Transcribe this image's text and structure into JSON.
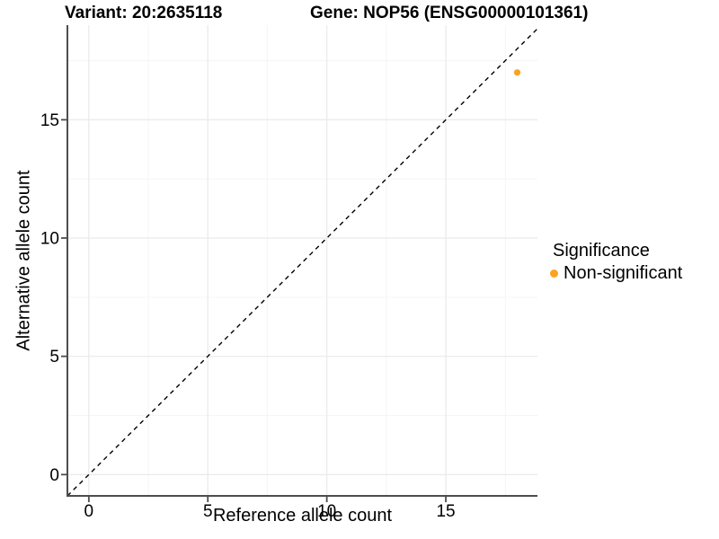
{
  "chart_data": {
    "type": "scatter",
    "title_variant": "Variant: 20:2635118",
    "title_gene": "Gene: NOP56 (ENSG00000101361)",
    "xlabel": "Reference allele count",
    "ylabel": "Alternative allele count",
    "xlim": [
      -0.9,
      18.85
    ],
    "ylim": [
      -0.9,
      19.0
    ],
    "x_ticks": [
      0,
      5,
      10,
      15
    ],
    "y_ticks": [
      0,
      5,
      10,
      15
    ],
    "x_minor_ticks": [
      2.5,
      7.5,
      12.5,
      17.5
    ],
    "y_minor_ticks": [
      2.5,
      7.5,
      12.5,
      17.5
    ],
    "grid": "major and minor gridlines, light gray on white",
    "series": [
      {
        "name": "Non-significant",
        "color": "#FBA31E",
        "points": [
          {
            "x": 18,
            "y": 17
          }
        ]
      }
    ],
    "reference_line": {
      "type": "identity y=x",
      "style": "dashed",
      "color": "#000000"
    },
    "legend": {
      "position": "right",
      "title": "Significance",
      "entries": [
        {
          "label": "Non-significant",
          "color": "#FBA31E"
        }
      ]
    },
    "colors": {
      "point_orange": "#FBA31E",
      "axis_line": "#4d4d4d",
      "tick_label": "#000000",
      "major_grid": "#ebebeb",
      "minor_grid": "#f5f5f5",
      "background": "#ffffff"
    }
  }
}
